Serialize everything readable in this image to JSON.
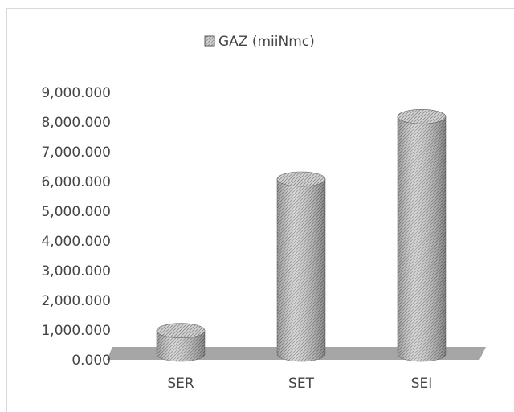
{
  "chart_data": {
    "type": "cylinder",
    "series": [
      {
        "name": "GAZ (miiNmc)",
        "color": "#c8c8c8",
        "values": [
          900,
          6000,
          8100
        ]
      }
    ],
    "categories": [
      "SER",
      "SET",
      "SEI"
    ],
    "ylim": [
      0,
      9000
    ],
    "yticks": [
      {
        "value": 0,
        "label": "0.000"
      },
      {
        "value": 1000,
        "label": "1,000.000"
      },
      {
        "value": 2000,
        "label": "2,000.000"
      },
      {
        "value": 3000,
        "label": "3,000.000"
      },
      {
        "value": 4000,
        "label": "4,000.000"
      },
      {
        "value": 5000,
        "label": "5,000.000"
      },
      {
        "value": 6000,
        "label": "6,000.000"
      },
      {
        "value": 7000,
        "label": "7,000.000"
      },
      {
        "value": 8000,
        "label": "8,000.000"
      },
      {
        "value": 9000,
        "label": "9,000.000"
      }
    ],
    "legend": "top",
    "grid": false
  }
}
